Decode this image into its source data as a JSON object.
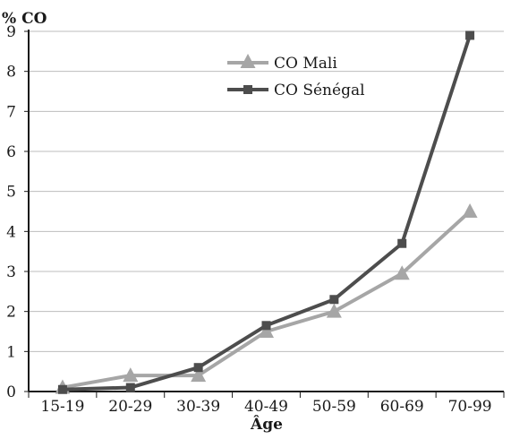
{
  "chart_data": {
    "type": "line",
    "title": "",
    "ylabel": "% CO",
    "xlabel": "Âge",
    "categories": [
      "15-19",
      "20-29",
      "30-39",
      "40-49",
      "50-59",
      "60-69",
      "70-99"
    ],
    "ylim": [
      0,
      9
    ],
    "yticks": [
      0,
      1,
      2,
      3,
      4,
      5,
      6,
      7,
      8,
      9
    ],
    "grid": true,
    "legend_position": "top-center",
    "series": [
      {
        "name": "CO Mali",
        "marker": "triangle",
        "color": "#a6a6a6",
        "values": [
          0.1,
          0.4,
          0.4,
          1.5,
          2.0,
          2.95,
          4.5
        ]
      },
      {
        "name": "CO Sénégal",
        "marker": "square",
        "color": "#4d4d4d",
        "values": [
          0.05,
          0.1,
          0.6,
          1.65,
          2.3,
          3.7,
          8.9
        ]
      }
    ]
  }
}
